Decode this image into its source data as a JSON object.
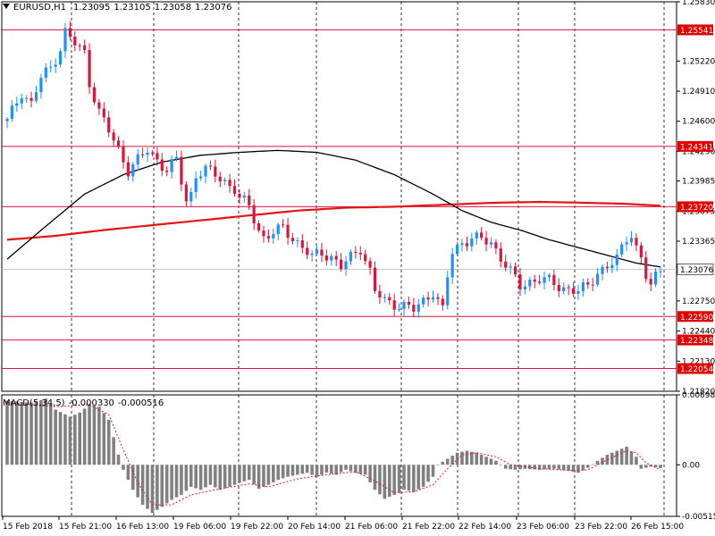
{
  "header": {
    "symbol": "EURUSD,H1",
    "open": "1.23095",
    "high": "1.23105",
    "low": "1.23058",
    "close": "1.23076"
  },
  "macd_label": {
    "name": "MACD(5,34,5)",
    "value1": "-0.000330",
    "value2": "-0.000516"
  },
  "colors": {
    "bull": "#1e90ff",
    "bear": "#dc143c",
    "level_line": "#dc143c",
    "ma_fast": "#000000",
    "ma_slow": "#e61414",
    "histogram": "#808080",
    "signal": "#dc143c",
    "price_tag_bg": "#ffffff",
    "level_tag_bg": "#e00000"
  },
  "chart_data": {
    "type": "candlestick",
    "symbol": "EURUSD",
    "timeframe": "H1",
    "price_axis": {
      "ylim": [
        1.2182,
        1.2583
      ],
      "ticks": [
        "1.25830",
        "1.25220",
        "1.24910",
        "1.24600",
        "1.24290",
        "1.23985",
        "1.23675",
        "1.23365",
        "1.22750",
        "1.22440",
        "1.22130",
        "1.21820"
      ],
      "tick_values": [
        1.2583,
        1.2522,
        1.2491,
        1.246,
        1.2429,
        1.23985,
        1.23675,
        1.23365,
        1.2275,
        1.2244,
        1.2213,
        1.2182
      ]
    },
    "levels": [
      {
        "label": "1.25541",
        "value": 1.25541
      },
      {
        "label": "1.24341",
        "value": 1.24341
      },
      {
        "label": "1.23720",
        "value": 1.2372
      },
      {
        "label": "1.22590",
        "value": 1.2259
      },
      {
        "label": "1.22348",
        "value": 1.22348
      },
      {
        "label": "1.22054",
        "value": 1.22054
      }
    ],
    "current_price": {
      "label": "1.23076",
      "value": 1.23076
    },
    "time_labels": [
      "15 Feb 2018",
      "15 Feb 21:00",
      "16 Feb 13:00",
      "19 Feb 06:00",
      "19 Feb 22:00",
      "20 Feb 14:00",
      "21 Feb 06:00",
      "21 Feb 22:00",
      "22 Feb 14:00",
      "23 Feb 06:00",
      "23 Feb 22:00",
      "26 Feb 15:00"
    ],
    "price_path": [
      [
        0,
        1.246
      ],
      [
        3,
        1.249
      ],
      [
        5,
        1.2478
      ],
      [
        7,
        1.2505
      ],
      [
        9,
        1.2515
      ],
      [
        11,
        1.2535
      ],
      [
        12,
        1.2552
      ],
      [
        14,
        1.254
      ],
      [
        16,
        1.253
      ],
      [
        17,
        1.25
      ],
      [
        19,
        1.247
      ],
      [
        21,
        1.245
      ],
      [
        23,
        1.243
      ],
      [
        25,
        1.241
      ],
      [
        27,
        1.242
      ],
      [
        29,
        1.243
      ],
      [
        31,
        1.242
      ],
      [
        33,
        1.241
      ],
      [
        35,
        1.242
      ],
      [
        36,
        1.2398
      ],
      [
        37,
        1.2378
      ],
      [
        38,
        1.2385
      ],
      [
        39,
        1.2405
      ],
      [
        41,
        1.241
      ],
      [
        43,
        1.2405
      ],
      [
        45,
        1.2398
      ],
      [
        47,
        1.239
      ],
      [
        48,
        1.238
      ],
      [
        50,
        1.2373
      ],
      [
        51,
        1.236
      ],
      [
        52,
        1.2348
      ],
      [
        53,
        1.234
      ],
      [
        55,
        1.2345
      ],
      [
        57,
        1.235
      ],
      [
        59,
        1.234
      ],
      [
        61,
        1.233
      ],
      [
        63,
        1.232
      ],
      [
        65,
        1.2325
      ],
      [
        67,
        1.232
      ],
      [
        69,
        1.231
      ],
      [
        71,
        1.232
      ],
      [
        73,
        1.233
      ],
      [
        75,
        1.2305
      ],
      [
        76,
        1.2285
      ],
      [
        78,
        1.2275
      ],
      [
        80,
        1.2272
      ],
      [
        82,
        1.227
      ],
      [
        84,
        1.2266
      ],
      [
        86,
        1.2275
      ],
      [
        88,
        1.2285
      ],
      [
        90,
        1.2265
      ],
      [
        91,
        1.23
      ],
      [
        92,
        1.2325
      ],
      [
        94,
        1.2335
      ],
      [
        96,
        1.234
      ],
      [
        98,
        1.2338
      ],
      [
        100,
        1.2335
      ],
      [
        102,
        1.232
      ],
      [
        104,
        1.2305
      ],
      [
        106,
        1.229
      ],
      [
        108,
        1.2295
      ],
      [
        110,
        1.2298
      ],
      [
        112,
        1.2295
      ],
      [
        114,
        1.229
      ],
      [
        116,
        1.2287
      ],
      [
        118,
        1.2285
      ],
      [
        120,
        1.229
      ],
      [
        122,
        1.2305
      ],
      [
        124,
        1.231
      ],
      [
        126,
        1.2318
      ],
      [
        128,
        1.234
      ],
      [
        129,
        1.2345
      ],
      [
        130,
        1.233
      ],
      [
        131,
        1.2318
      ],
      [
        132,
        1.23
      ],
      [
        133,
        1.229
      ],
      [
        134,
        1.23
      ],
      [
        135,
        1.23076
      ]
    ],
    "ma_fast_path": [
      [
        0,
        1.2318
      ],
      [
        8,
        1.2352
      ],
      [
        16,
        1.2385
      ],
      [
        24,
        1.2405
      ],
      [
        32,
        1.2418
      ],
      [
        40,
        1.2425
      ],
      [
        48,
        1.2428
      ],
      [
        56,
        1.243
      ],
      [
        64,
        1.2428
      ],
      [
        72,
        1.242
      ],
      [
        80,
        1.2405
      ],
      [
        88,
        1.2385
      ],
      [
        94,
        1.2368
      ],
      [
        100,
        1.2356
      ],
      [
        106,
        1.2348
      ],
      [
        112,
        1.2338
      ],
      [
        118,
        1.233
      ],
      [
        124,
        1.2322
      ],
      [
        130,
        1.2314
      ],
      [
        135,
        1.231
      ]
    ],
    "ma_slow_path": [
      [
        0,
        1.2338
      ],
      [
        10,
        1.2342
      ],
      [
        20,
        1.2348
      ],
      [
        30,
        1.2353
      ],
      [
        40,
        1.2358
      ],
      [
        50,
        1.2363
      ],
      [
        60,
        1.2368
      ],
      [
        70,
        1.2371
      ],
      [
        80,
        1.2372
      ],
      [
        90,
        1.2374
      ],
      [
        100,
        1.2376
      ],
      [
        110,
        1.2377
      ],
      [
        120,
        1.2376
      ],
      [
        128,
        1.2375
      ],
      [
        135,
        1.2373
      ]
    ],
    "macd": {
      "name": "MACD(5,34,5)",
      "ylim": [
        -0.00515,
        0.00698
      ],
      "ticks": [
        "0.006983",
        "0.00",
        "-0.005155"
      ],
      "tick_values": [
        0.006983,
        0.0,
        -0.005155
      ],
      "histogram_path": [
        [
          0,
          0.0064
        ],
        [
          5,
          0.0062
        ],
        [
          8,
          0.0066
        ],
        [
          10,
          0.0055
        ],
        [
          13,
          0.0048
        ],
        [
          15,
          0.0052
        ],
        [
          17,
          0.006
        ],
        [
          19,
          0.0058
        ],
        [
          21,
          0.0045
        ],
        [
          23,
          0.001
        ],
        [
          24,
          -0.0005
        ],
        [
          26,
          -0.0025
        ],
        [
          28,
          -0.004
        ],
        [
          30,
          -0.0048
        ],
        [
          32,
          -0.0042
        ],
        [
          34,
          -0.0035
        ],
        [
          36,
          -0.003
        ],
        [
          38,
          -0.0022
        ],
        [
          40,
          -0.0025
        ],
        [
          42,
          -0.002
        ],
        [
          44,
          -0.0025
        ],
        [
          46,
          -0.0022
        ],
        [
          48,
          -0.0018
        ],
        [
          50,
          -0.0015
        ],
        [
          52,
          -0.0024
        ],
        [
          54,
          -0.002
        ],
        [
          56,
          -0.0015
        ],
        [
          58,
          -0.0012
        ],
        [
          60,
          -0.001
        ],
        [
          62,
          -0.0008
        ],
        [
          64,
          -0.0012
        ],
        [
          66,
          -0.0008
        ],
        [
          68,
          -0.001
        ],
        [
          70,
          -0.0005
        ],
        [
          72,
          -0.0008
        ],
        [
          74,
          -0.001
        ],
        [
          76,
          -0.0025
        ],
        [
          78,
          -0.0034
        ],
        [
          80,
          -0.003
        ],
        [
          82,
          -0.0025
        ],
        [
          84,
          -0.0027
        ],
        [
          86,
          -0.0022
        ],
        [
          88,
          -0.0012
        ],
        [
          89,
          0.0
        ],
        [
          91,
          0.0006
        ],
        [
          93,
          0.0012
        ],
        [
          95,
          0.0014
        ],
        [
          97,
          0.0012
        ],
        [
          99,
          0.0008
        ],
        [
          101,
          0.0004
        ],
        [
          103,
          -0.0004
        ],
        [
          105,
          -0.0005
        ],
        [
          107,
          -0.0004
        ],
        [
          110,
          -0.0005
        ],
        [
          113,
          -0.0004
        ],
        [
          116,
          -0.0006
        ],
        [
          118,
          -0.0008
        ],
        [
          120,
          -0.0003
        ],
        [
          122,
          0.0004
        ],
        [
          124,
          0.001
        ],
        [
          126,
          0.0014
        ],
        [
          128,
          0.0018
        ],
        [
          130,
          0.0008
        ],
        [
          131,
          -0.0004
        ],
        [
          133,
          -0.0002
        ],
        [
          135,
          -0.00033
        ]
      ],
      "signal_path": [
        [
          0,
          0.0062
        ],
        [
          10,
          0.0058
        ],
        [
          17,
          0.006
        ],
        [
          21,
          0.005
        ],
        [
          24,
          0.0015
        ],
        [
          27,
          -0.0018
        ],
        [
          30,
          -0.004
        ],
        [
          34,
          -0.004
        ],
        [
          38,
          -0.003
        ],
        [
          44,
          -0.0024
        ],
        [
          50,
          -0.0019
        ],
        [
          54,
          -0.0022
        ],
        [
          60,
          -0.0014
        ],
        [
          66,
          -0.001
        ],
        [
          72,
          -0.0007
        ],
        [
          76,
          -0.0016
        ],
        [
          80,
          -0.0028
        ],
        [
          84,
          -0.0027
        ],
        [
          88,
          -0.002
        ],
        [
          91,
          -0.0004
        ],
        [
          94,
          0.001
        ],
        [
          97,
          0.0012
        ],
        [
          101,
          0.0008
        ],
        [
          104,
          0.0
        ],
        [
          110,
          -0.0004
        ],
        [
          118,
          -0.0006
        ],
        [
          120,
          -0.0005
        ],
        [
          124,
          0.0005
        ],
        [
          128,
          0.0014
        ],
        [
          130,
          0.0012
        ],
        [
          132,
          0.0002
        ],
        [
          135,
          -0.000516
        ]
      ]
    }
  }
}
